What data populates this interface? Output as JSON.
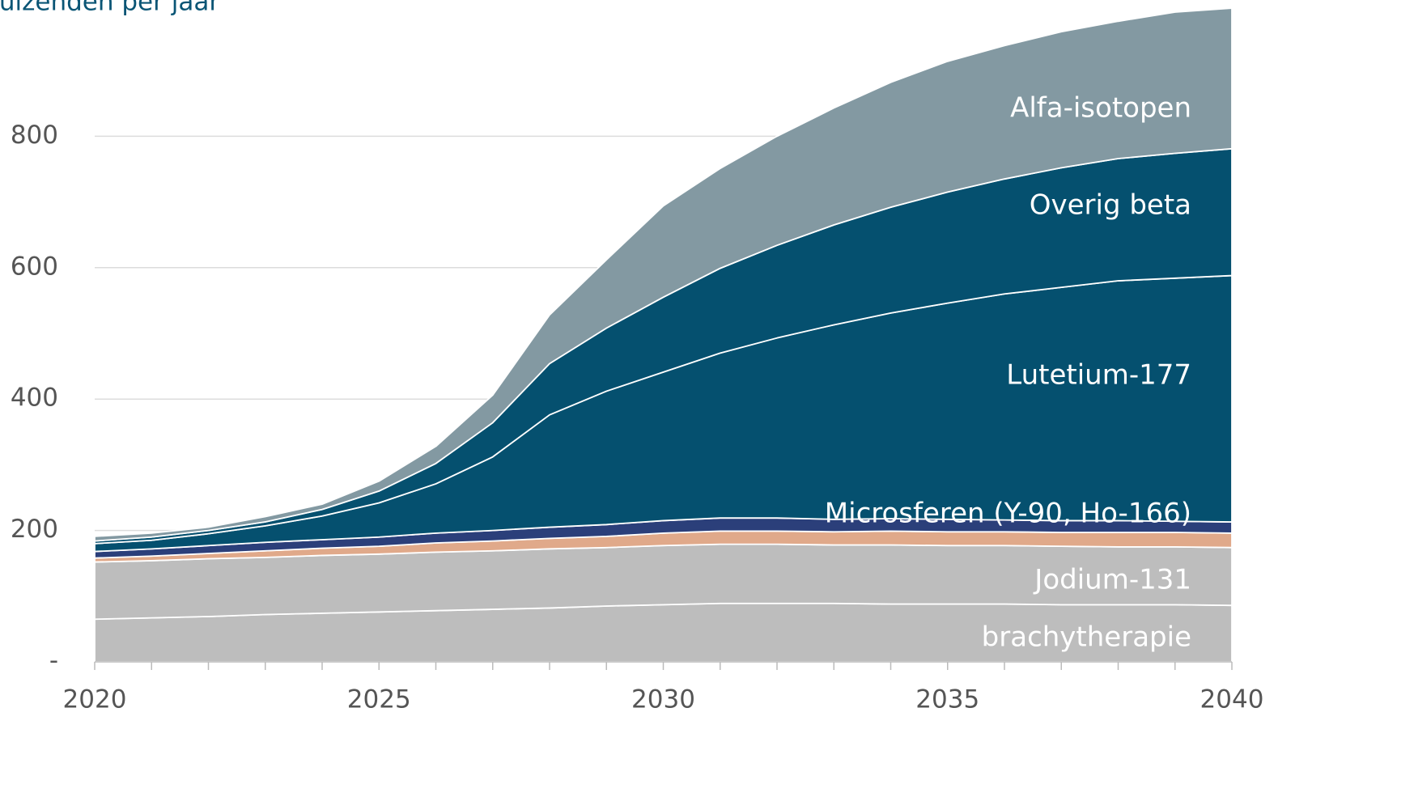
{
  "chart_data": {
    "type": "stacked-area",
    "title": "Duizenden per jaar",
    "x": [
      2020,
      2021,
      2022,
      2023,
      2024,
      2025,
      2026,
      2027,
      2028,
      2029,
      2030,
      2031,
      2032,
      2033,
      2034,
      2035,
      2036,
      2037,
      2038,
      2039,
      2040
    ],
    "xlim": [
      2020,
      2040
    ],
    "xticks": [
      2020,
      2025,
      2030,
      2035,
      2040
    ],
    "ylim": [
      0,
      1000
    ],
    "yticks": [
      {
        "value": 0,
        "label": "-"
      },
      200,
      400,
      600,
      800
    ],
    "grid": true,
    "series": [
      {
        "name": "brachytherapie",
        "color": "#bdbdbd",
        "values": [
          65,
          67,
          69,
          72,
          74,
          76,
          78,
          80,
          82,
          85,
          87,
          89,
          89,
          89,
          88,
          88,
          88,
          87,
          87,
          87,
          86
        ]
      },
      {
        "name": "Jodium-131",
        "color": "#bdbdbd",
        "values": [
          87,
          87,
          88,
          87,
          88,
          88,
          89,
          89,
          90,
          89,
          90,
          90,
          90,
          89,
          90,
          89,
          89,
          89,
          88,
          88,
          88
        ]
      },
      {
        "name": null,
        "color": "#e0a98a",
        "values": [
          6,
          7,
          8,
          10,
          11,
          12,
          14,
          15,
          16,
          17,
          19,
          20,
          20,
          20,
          21,
          21,
          21,
          21,
          22,
          22,
          22
        ]
      },
      {
        "name": "Microsferen (Y-90, Ho-166)",
        "color": "#2b3f7a",
        "values": [
          10,
          11,
          12,
          13,
          13,
          14,
          15,
          16,
          17,
          18,
          19,
          20,
          20,
          19,
          19,
          19,
          18,
          18,
          18,
          17,
          17
        ]
      },
      {
        "name": "Lutetium-177",
        "color": "#05506f",
        "values": [
          12,
          13,
          18,
          25,
          36,
          52,
          75,
          112,
          171,
          203,
          226,
          251,
          274,
          296,
          313,
          329,
          344,
          355,
          365,
          370,
          375
        ]
      },
      {
        "name": "Overig beta",
        "color": "#05506f",
        "values": [
          4,
          5,
          5,
          6,
          10,
          18,
          31,
          52,
          78,
          96,
          114,
          129,
          141,
          152,
          161,
          169,
          175,
          182,
          186,
          190,
          193
        ]
      },
      {
        "name": "Alfa-isotopen",
        "color": "#8399a2",
        "values": [
          7,
          6,
          5,
          8,
          8,
          15,
          26,
          42,
          74,
          104,
          139,
          152,
          166,
          178,
          190,
          199,
          203,
          207,
          209,
          215,
          214
        ]
      }
    ]
  }
}
